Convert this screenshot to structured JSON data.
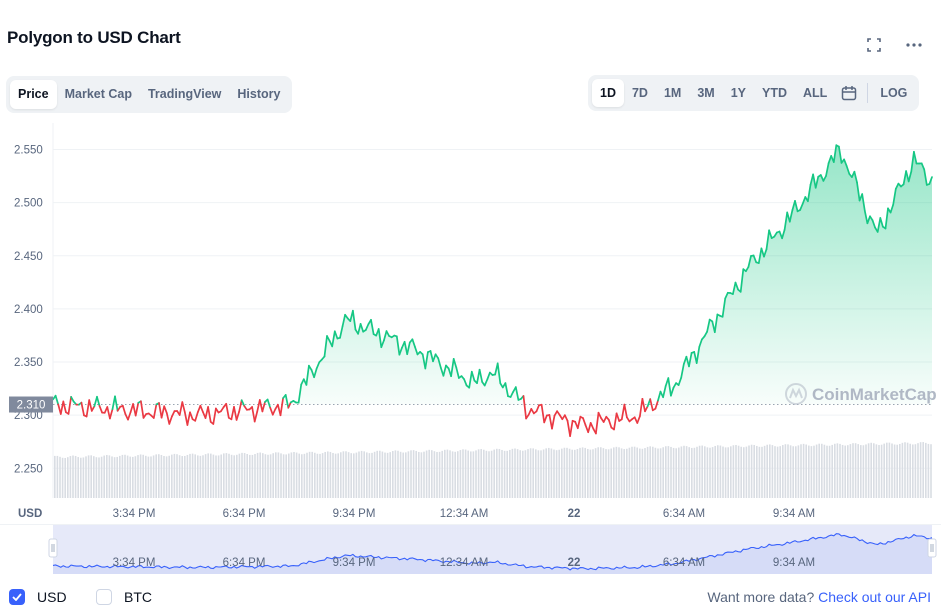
{
  "header": {
    "title": "Polygon to USD Chart",
    "fullscreen_icon": "fullscreen-icon",
    "more_icon": "more-dots-icon"
  },
  "tabs": [
    {
      "label": "Price",
      "active": true
    },
    {
      "label": "Market Cap",
      "active": false
    },
    {
      "label": "TradingView",
      "active": false
    },
    {
      "label": "History",
      "active": false
    }
  ],
  "ranges": [
    {
      "label": "1D",
      "active": true
    },
    {
      "label": "7D",
      "active": false
    },
    {
      "label": "1M",
      "active": false
    },
    {
      "label": "3M",
      "active": false
    },
    {
      "label": "1Y",
      "active": false
    },
    {
      "label": "YTD",
      "active": false
    },
    {
      "label": "ALL",
      "active": false
    }
  ],
  "calendar_icon": "calendar-icon",
  "log_label": "LOG",
  "colors": {
    "up": "#16c784",
    "down": "#ea3943",
    "accent": "#3861fb",
    "grid": "#eff2f5",
    "muted": "#58667e"
  },
  "chart_data": {
    "type": "line",
    "currency_label": "USD",
    "baseline_label": "2.310",
    "baseline": 2.31,
    "yticks": [
      "2.250",
      "2.300",
      "2.350",
      "2.400",
      "2.450",
      "2.500",
      "2.550"
    ],
    "ylim": [
      2.222,
      2.575
    ],
    "xticks": [
      "3:34 PM",
      "6:34 PM",
      "9:34 PM",
      "12:34 AM",
      "22",
      "6:34 AM",
      "9:34 AM"
    ],
    "x_hours": [
      0,
      4,
      6.5,
      8,
      10,
      11.5,
      12,
      13,
      14.5,
      16,
      17,
      19,
      20,
      21.5,
      22.5,
      23.5,
      24
    ],
    "series": [
      {
        "values": [
          2.31,
          2.3,
          2.31,
          2.39,
          2.36,
          2.33,
          2.34,
          2.305,
          2.29,
          2.3,
          2.33,
          2.44,
          2.48,
          2.55,
          2.47,
          2.54,
          2.52
        ]
      }
    ],
    "watermark": "CoinMarketCap"
  },
  "legend": [
    {
      "label": "USD",
      "checked": true
    },
    {
      "label": "BTC",
      "checked": false
    }
  ],
  "footer": {
    "prompt": "Want more data? ",
    "link": "Check out our API"
  }
}
